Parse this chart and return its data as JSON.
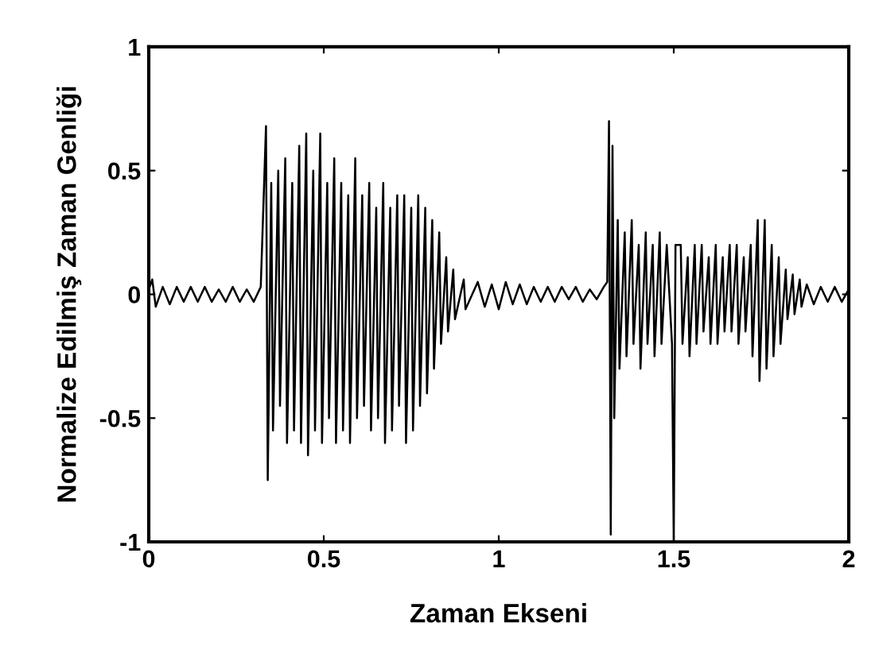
{
  "chart_data": {
    "type": "line",
    "xlabel": "Zaman Ekseni",
    "ylabel": "Normalize Edilmiş Zaman Genliği",
    "xlim": [
      0,
      2
    ],
    "ylim": [
      -1,
      1
    ],
    "xticks": [
      0,
      0.5,
      1,
      1.5,
      2
    ],
    "yticks": [
      -1,
      -0.5,
      0,
      0.5,
      1
    ],
    "grid": false,
    "legend": false,
    "series": [
      {
        "color": "#000000",
        "x": [
          0,
          0.01,
          0.02,
          0.04,
          0.06,
          0.08,
          0.1,
          0.12,
          0.14,
          0.16,
          0.18,
          0.2,
          0.22,
          0.24,
          0.26,
          0.28,
          0.3,
          0.32,
          0.335,
          0.34,
          0.35,
          0.355,
          0.37,
          0.375,
          0.39,
          0.395,
          0.41,
          0.415,
          0.43,
          0.435,
          0.45,
          0.455,
          0.47,
          0.475,
          0.49,
          0.495,
          0.51,
          0.515,
          0.53,
          0.535,
          0.55,
          0.555,
          0.57,
          0.575,
          0.59,
          0.595,
          0.61,
          0.615,
          0.63,
          0.635,
          0.65,
          0.655,
          0.67,
          0.675,
          0.69,
          0.695,
          0.71,
          0.715,
          0.73,
          0.735,
          0.75,
          0.755,
          0.77,
          0.775,
          0.79,
          0.795,
          0.81,
          0.815,
          0.83,
          0.835,
          0.85,
          0.855,
          0.87,
          0.875,
          0.9,
          0.905,
          0.94,
          0.96,
          0.98,
          1.0,
          1.02,
          1.04,
          1.06,
          1.08,
          1.1,
          1.12,
          1.14,
          1.16,
          1.18,
          1.2,
          1.22,
          1.24,
          1.26,
          1.28,
          1.3,
          1.31,
          1.315,
          1.32,
          1.325,
          1.33,
          1.34,
          1.345,
          1.36,
          1.365,
          1.38,
          1.385,
          1.4,
          1.405,
          1.42,
          1.425,
          1.44,
          1.445,
          1.46,
          1.465,
          1.48,
          1.495,
          1.5,
          1.505,
          1.52,
          1.525,
          1.54,
          1.545,
          1.56,
          1.565,
          1.58,
          1.585,
          1.6,
          1.605,
          1.62,
          1.625,
          1.64,
          1.645,
          1.66,
          1.665,
          1.68,
          1.685,
          1.7,
          1.705,
          1.72,
          1.725,
          1.74,
          1.745,
          1.76,
          1.765,
          1.78,
          1.785,
          1.8,
          1.805,
          1.82,
          1.825,
          1.84,
          1.845,
          1.86,
          1.865,
          1.88,
          1.9,
          1.92,
          1.94,
          1.96,
          1.98,
          2.0
        ],
        "values": [
          0.02,
          0.06,
          -0.05,
          0.03,
          -0.04,
          0.03,
          -0.03,
          0.03,
          -0.03,
          0.03,
          -0.03,
          0.02,
          -0.03,
          0.03,
          -0.03,
          0.02,
          -0.03,
          0.03,
          0.68,
          -0.75,
          0.45,
          -0.55,
          0.5,
          -0.45,
          0.55,
          -0.6,
          0.45,
          -0.55,
          0.6,
          -0.6,
          0.65,
          -0.65,
          0.5,
          -0.55,
          0.65,
          -0.6,
          0.45,
          -0.5,
          0.55,
          -0.6,
          0.45,
          -0.55,
          0.4,
          -0.6,
          0.55,
          -0.5,
          0.4,
          -0.45,
          0.45,
          -0.55,
          0.35,
          -0.5,
          0.45,
          -0.6,
          0.35,
          -0.55,
          0.4,
          -0.45,
          0.4,
          -0.6,
          0.35,
          -0.55,
          0.4,
          -0.45,
          0.35,
          -0.4,
          0.3,
          -0.3,
          0.25,
          -0.2,
          0.15,
          -0.15,
          0.1,
          -0.1,
          0.06,
          -0.06,
          0.05,
          -0.05,
          0.04,
          -0.06,
          0.05,
          -0.04,
          0.04,
          -0.04,
          0.03,
          -0.03,
          0.03,
          -0.03,
          0.03,
          -0.02,
          0.03,
          -0.03,
          0.02,
          -0.02,
          0.03,
          0.05,
          0.7,
          -0.97,
          0.6,
          -0.5,
          0.3,
          -0.3,
          0.25,
          -0.25,
          0.3,
          -0.2,
          0.2,
          -0.3,
          0.25,
          -0.2,
          0.2,
          -0.25,
          0.25,
          -0.2,
          0.2,
          -0.2,
          -1.0,
          0.2,
          0.2,
          -0.2,
          0.15,
          -0.25,
          0.2,
          -0.2,
          0.2,
          -0.15,
          0.15,
          -0.2,
          0.2,
          -0.2,
          0.15,
          -0.15,
          0.2,
          -0.15,
          0.2,
          -0.2,
          0.15,
          -0.15,
          0.2,
          -0.25,
          0.3,
          -0.35,
          0.3,
          -0.3,
          0.2,
          -0.25,
          0.15,
          -0.2,
          0.1,
          -0.1,
          0.08,
          -0.08,
          0.06,
          -0.05,
          0.04,
          -0.04,
          0.03,
          -0.03,
          0.03,
          -0.03,
          0.02
        ]
      }
    ]
  }
}
